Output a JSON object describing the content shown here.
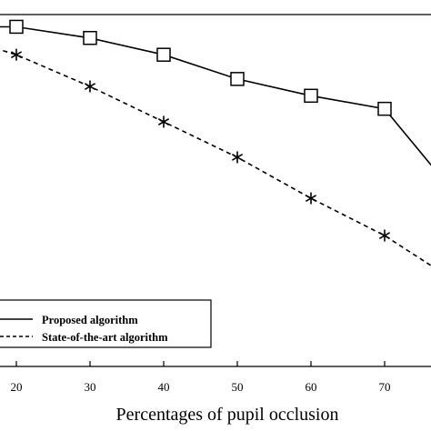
{
  "chart_data": {
    "type": "line",
    "xlabel": "Percentages of pupil occlusion",
    "ylabel": "",
    "x_ticks": [
      20,
      30,
      40,
      50,
      60,
      70
    ],
    "xlim": [
      0,
      79
    ],
    "ylim": [
      0,
      100
    ],
    "grid": false,
    "legend_position": "bottom-left",
    "series": [
      {
        "name": "Proposed algorithm",
        "style": "solid",
        "marker": "square",
        "color": "#000000",
        "x": [
          15,
          20,
          30,
          40,
          50,
          60,
          70,
          79
        ],
        "y": [
          95.5,
          95.5,
          92.5,
          88.0,
          81.5,
          77.0,
          73.5,
          52.0
        ]
      },
      {
        "name": "State-of-the-art algorithm",
        "style": "dashed",
        "marker": "asterisk",
        "color": "#000000",
        "x": [
          15,
          20,
          30,
          40,
          50,
          60,
          70,
          79
        ],
        "y": [
          91.0,
          88.0,
          79.5,
          70.0,
          60.5,
          49.5,
          39.5,
          28.0
        ]
      }
    ]
  }
}
